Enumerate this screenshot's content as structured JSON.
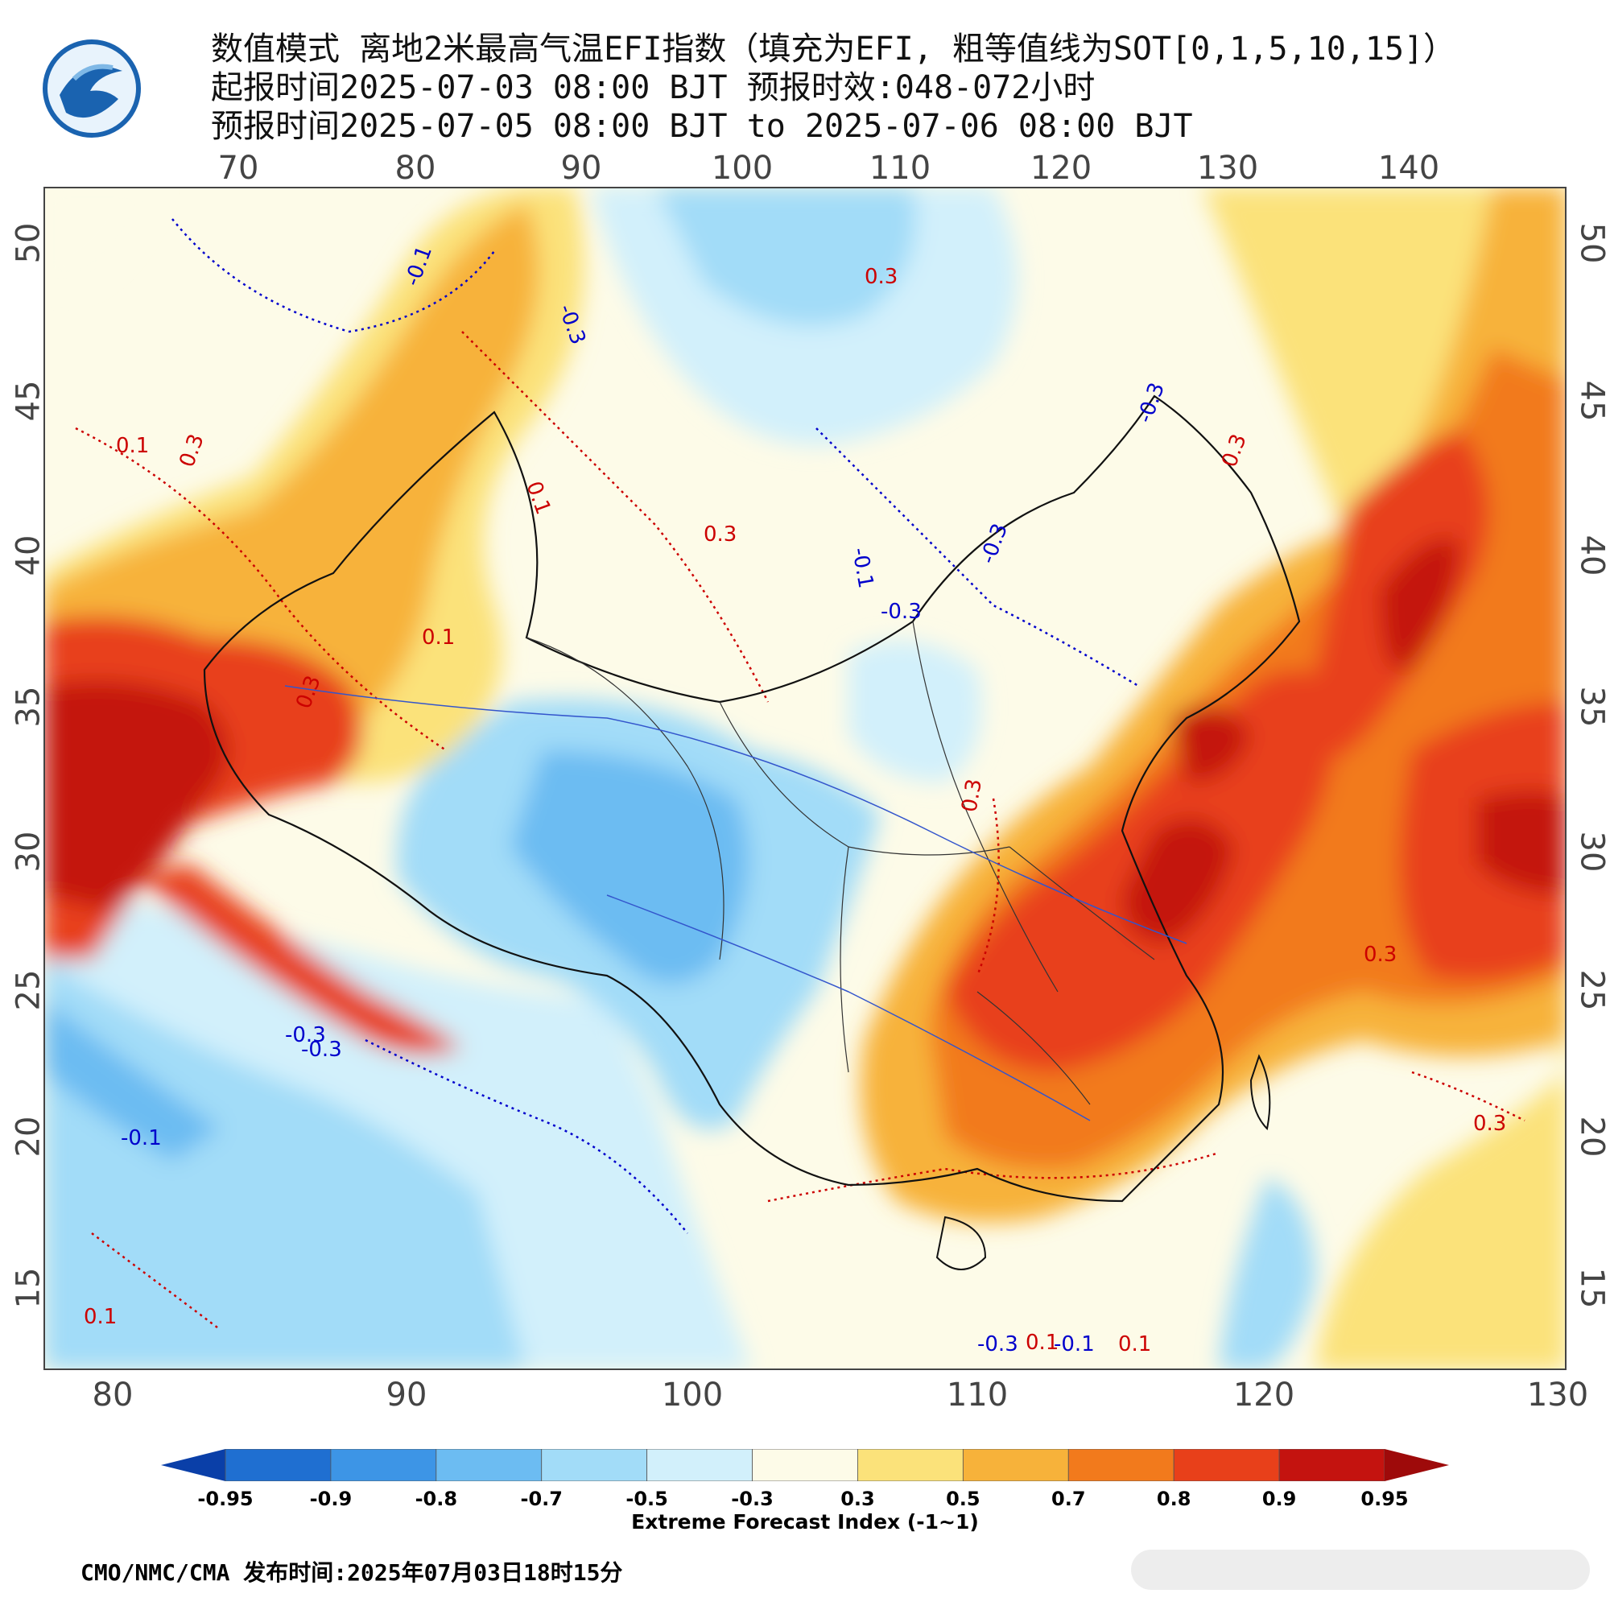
{
  "header": {
    "line1": "数值模式 离地2米最高气温EFI指数（填充为EFI, 粗等值线为SOT[0,1,5,10,15]）",
    "line2": "起报时间2025-07-03 08:00 BJT 预报时效:048-072小时",
    "line3": "预报时间2025-07-05 08:00 BJT to 2025-07-06 08:00 BJT"
  },
  "logo": {
    "icon": "cma-logo-icon",
    "colors": [
      "#1a63b0",
      "#7fb8e6"
    ]
  },
  "map": {
    "top_lon_ticks": [
      "70",
      "80",
      "90",
      "100",
      "110",
      "120",
      "130",
      "140"
    ],
    "bottom_lon_ticks": [
      "80",
      "90",
      "100",
      "110",
      "120",
      "130"
    ],
    "lat_ticks": [
      "50",
      "45",
      "40",
      "35",
      "30",
      "25",
      "20",
      "15"
    ],
    "contour_labels": [
      {
        "text": "-0.1",
        "color": "#0000cc"
      },
      {
        "text": "0.1",
        "color": "#cc0000"
      },
      {
        "text": "0.3",
        "color": "#cc0000"
      },
      {
        "text": "-0.3",
        "color": "#0000cc"
      },
      {
        "text": "0.1",
        "color": "#cc0000"
      },
      {
        "text": "0.3",
        "color": "#cc0000"
      },
      {
        "text": "-0.3",
        "color": "#0000cc"
      },
      {
        "text": "0.3",
        "color": "#cc0000"
      },
      {
        "text": "-0.3",
        "color": "#0000cc"
      },
      {
        "text": "0.3",
        "color": "#cc0000"
      },
      {
        "text": "-0.1",
        "color": "#0000cc"
      },
      {
        "text": "-0.3",
        "color": "#0000cc"
      },
      {
        "text": "0.1",
        "color": "#cc0000"
      },
      {
        "text": "0.3",
        "color": "#cc0000"
      },
      {
        "text": "0.3",
        "color": "#cc0000"
      },
      {
        "text": "-0.3",
        "color": "#0000cc"
      },
      {
        "text": "0.1",
        "color": "#cc0000"
      },
      {
        "text": "-0.3",
        "color": "#0000cc"
      },
      {
        "text": "-0.1",
        "color": "#0000cc"
      },
      {
        "text": "0.1",
        "color": "#cc0000"
      },
      {
        "text": "0.3",
        "color": "#cc0000"
      },
      {
        "text": "0.3",
        "color": "#cc0000"
      },
      {
        "text": "-0.3",
        "color": "#0000cc"
      },
      {
        "text": "-0.1",
        "color": "#0000cc"
      },
      {
        "text": "0.1",
        "color": "#cc0000"
      }
    ]
  },
  "colorbar": {
    "labels": [
      "-0.95",
      "-0.9",
      "-0.8",
      "-0.7",
      "-0.5",
      "-0.3",
      "0.3",
      "0.5",
      "0.7",
      "0.8",
      "0.9",
      "0.95"
    ],
    "colors": [
      "#0a3fa8",
      "#1f6fd1",
      "#3d95e6",
      "#6cbcf2",
      "#a2dcf8",
      "#d2f0fb",
      "#fdfbe8",
      "#fbe27a",
      "#f7b23a",
      "#f27a1c",
      "#e8401a",
      "#c4130f",
      "#9e0a0a"
    ],
    "title": "Extreme Forecast Index (-1~1)"
  },
  "footer": {
    "text": "CMO/NMC/CMA 发布时间:2025年07月03日18时15分"
  }
}
